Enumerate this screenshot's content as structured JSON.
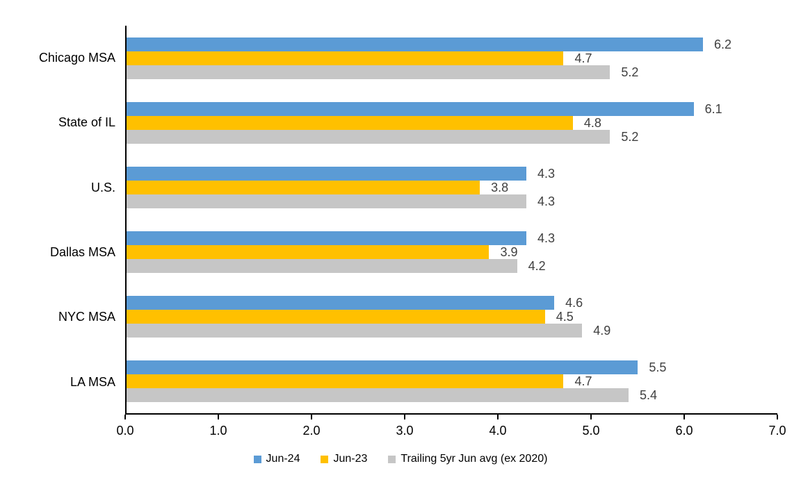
{
  "colors": {
    "jun24_blue": "#5B9BD5",
    "jun23_yellow": "#FFC000",
    "avg_gray": "#C6C6C6",
    "axis_line": "#000000",
    "data_label": "#404040",
    "text": "#000000"
  },
  "chart_data": {
    "type": "bar",
    "orientation": "horizontal",
    "title": "",
    "xlabel": "",
    "ylabel": "",
    "categories": [
      "Chicago MSA",
      "State of IL",
      "U.S.",
      "Dallas MSA",
      "NYC MSA",
      "LA MSA"
    ],
    "series": [
      {
        "name": "Jun-24",
        "color": "#5B9BD5",
        "values": [
          6.2,
          6.1,
          4.3,
          4.3,
          4.6,
          5.5
        ]
      },
      {
        "name": "Jun-23",
        "color": "#FFC000",
        "values": [
          4.7,
          4.8,
          3.8,
          3.9,
          4.5,
          4.7
        ]
      },
      {
        "name": "Trailing 5yr Jun avg (ex 2020)",
        "color": "#C6C6C6",
        "values": [
          5.2,
          5.2,
          4.3,
          4.2,
          4.9,
          5.4
        ]
      }
    ],
    "data_labels_shown": true,
    "xlim": [
      0,
      7
    ],
    "x_ticks": [
      "0.0",
      "1.0",
      "2.0",
      "3.0",
      "4.0",
      "5.0",
      "6.0",
      "7.0"
    ],
    "grid": false,
    "legend_position": "bottom"
  }
}
